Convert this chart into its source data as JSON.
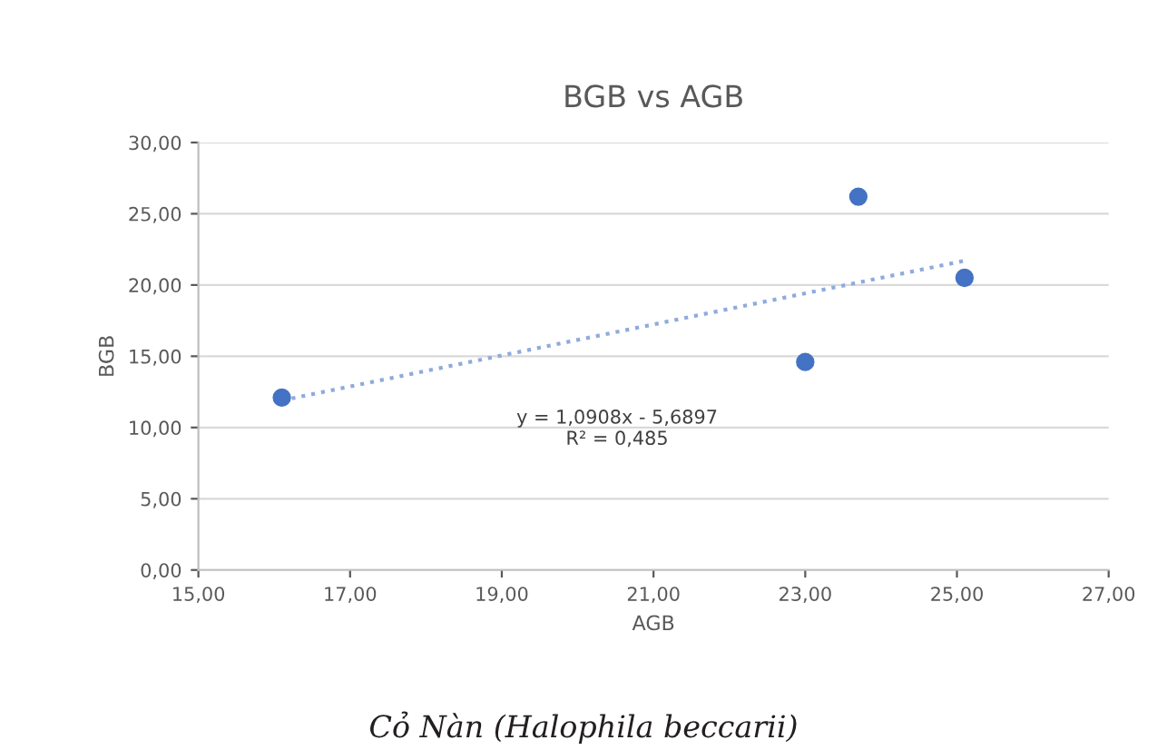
{
  "chart_data": {
    "type": "scatter",
    "title": "BGB vs AGB",
    "xlabel": "AGB",
    "ylabel": "BGB",
    "series": [
      {
        "color": "#4472c4",
        "x": [
          16.1,
          23.0,
          23.7,
          25.1
        ],
        "values": [
          12.1,
          14.6,
          26.2,
          20.5
        ],
        "marker": "circle"
      },
      {
        "type": "line",
        "color": "#8faadc",
        "x": [
          16.1,
          25.1
        ],
        "values": [
          11.9,
          21.7
        ],
        "line_style": "dotted",
        "marker": "none"
      }
    ],
    "xlim": [
      15,
      27
    ],
    "xticks": [
      {
        "value": 15,
        "label": "15,00"
      },
      {
        "value": 17,
        "label": "17,00"
      },
      {
        "value": 19,
        "label": "19,00"
      },
      {
        "value": 21,
        "label": "21,00"
      },
      {
        "value": 23,
        "label": "23,00"
      },
      {
        "value": 25,
        "label": "25,00"
      },
      {
        "value": 27,
        "label": "27,00"
      }
    ],
    "ylim": [
      0,
      30
    ],
    "yticks": [
      {
        "value": 0,
        "label": "0,00"
      },
      {
        "value": 5,
        "label": "5,00"
      },
      {
        "value": 10,
        "label": "10,00"
      },
      {
        "value": 15,
        "label": "15,00"
      },
      {
        "value": 20,
        "label": "20,00"
      },
      {
        "value": 25,
        "label": "25,00"
      },
      {
        "value": 30,
        "label": "30,00"
      }
    ],
    "grid": "y",
    "annotations": [
      "y = 1,0908x - 5,6897\nR² = 0,485",
      "Cỏ Nàn (Halophila beccarii)"
    ]
  }
}
